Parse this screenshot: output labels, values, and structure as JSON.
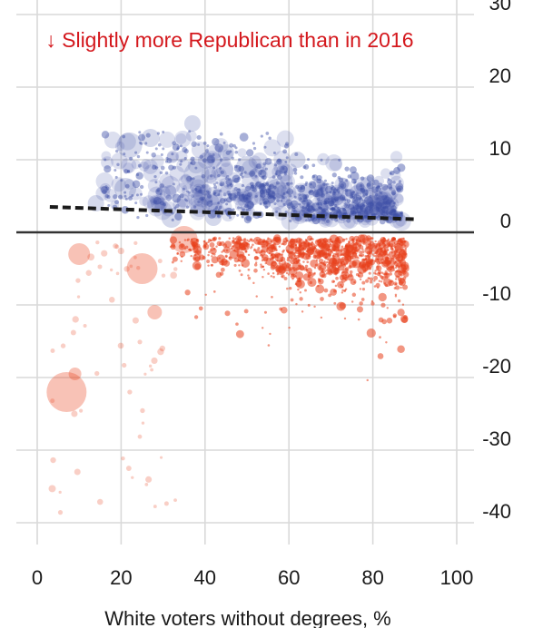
{
  "chart_data": {
    "type": "scatter",
    "title": "",
    "xlabel": "White voters without degrees, %",
    "ylabel": "",
    "xlim": [
      -5,
      110
    ],
    "ylim": [
      -42,
      30
    ],
    "x_ticks": [
      0,
      20,
      40,
      60,
      80,
      100
    ],
    "y_ticks": [
      30,
      20,
      10,
      0,
      -10,
      -20,
      -30,
      -40
    ],
    "x_tick_labels": [
      "0",
      "20",
      "40",
      "60",
      "80",
      "100"
    ],
    "y_tick_labels": [
      "30",
      "20",
      "10",
      "0",
      "-10",
      "-20",
      "-30",
      "-40"
    ],
    "grid": true,
    "annotation": {
      "text": "↓ Slightly more Republican than in 2016",
      "color": "#d4181d",
      "at": [
        2,
        25.5
      ]
    },
    "colors": {
      "democratic_shift": "#3b4ea6",
      "republican_shift": "#e8401c",
      "trend_line": "#1a1a1a",
      "zero_line": "#333333",
      "grid": "#d9d9d9"
    },
    "trend_line": {
      "x": [
        3,
        90
      ],
      "y": [
        3.5,
        1.8
      ],
      "style": "dashed"
    },
    "zero_line": 0,
    "highlighted_points": [
      {
        "x": 7,
        "y": -22,
        "size": 22,
        "group": "republican_shift"
      },
      {
        "x": 25,
        "y": -5,
        "size": 17,
        "group": "republican_shift"
      },
      {
        "x": 10,
        "y": -3,
        "size": 12,
        "group": "republican_shift"
      },
      {
        "x": 28,
        "y": -11,
        "size": 8,
        "group": "republican_shift"
      },
      {
        "x": 9,
        "y": -19.5,
        "size": 7,
        "group": "republican_shift"
      },
      {
        "x": 35,
        "y": -1,
        "size": 15,
        "group": "republican_shift"
      },
      {
        "x": 22,
        "y": 12,
        "size": 14,
        "group": "democratic_shift"
      },
      {
        "x": 37,
        "y": 15,
        "size": 9,
        "group": "democratic_shift"
      },
      {
        "x": 38,
        "y": 8,
        "size": 14,
        "group": "democratic_shift"
      },
      {
        "x": 21,
        "y": 6,
        "size": 12,
        "group": "democratic_shift"
      },
      {
        "x": 14,
        "y": 4,
        "size": 9,
        "group": "democratic_shift"
      },
      {
        "x": 27,
        "y": 13,
        "size": 10,
        "group": "democratic_shift"
      },
      {
        "x": 32,
        "y": 2,
        "size": 11,
        "group": "democratic_shift"
      },
      {
        "x": 45,
        "y": 11,
        "size": 9,
        "group": "democratic_shift"
      },
      {
        "x": 50,
        "y": 9,
        "size": 12,
        "group": "democratic_shift"
      },
      {
        "x": 57,
        "y": 6,
        "size": 11,
        "group": "democratic_shift"
      },
      {
        "x": 62,
        "y": 10,
        "size": 9,
        "group": "democratic_shift"
      },
      {
        "x": 42,
        "y": 2,
        "size": 9,
        "group": "democratic_shift"
      }
    ]
  }
}
